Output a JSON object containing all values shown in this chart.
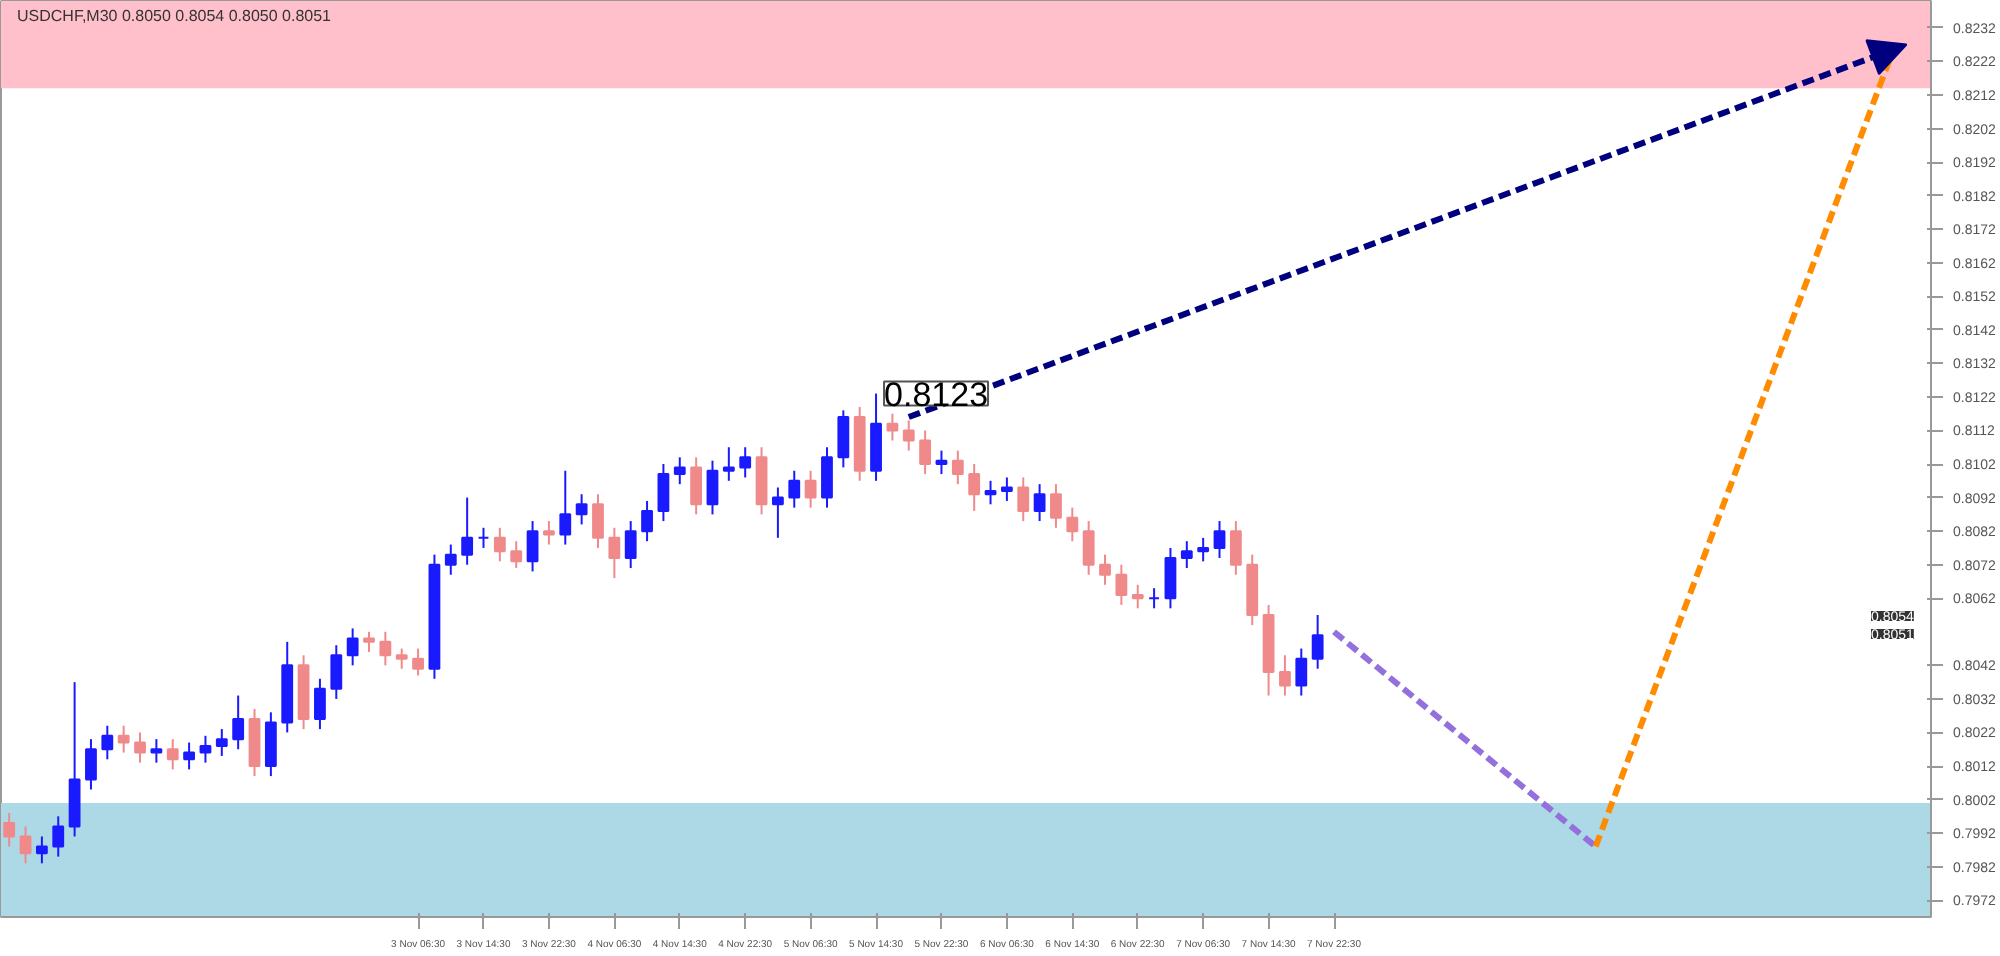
{
  "chart_data": {
    "type": "candlestick",
    "title": "USDCHF,M30  0.8050 0.8054 0.8050 0.8051",
    "categories": [
      null,
      null,
      null,
      null,
      null,
      null,
      null,
      null,
      null,
      null,
      null,
      null,
      null,
      null,
      null,
      null,
      null,
      null,
      null,
      null,
      null,
      null,
      null,
      null,
      null,
      "3 Nov 06:30",
      null,
      null,
      null,
      "3 Nov 14:30",
      null,
      null,
      null,
      "3 Nov 22:30",
      null,
      null,
      null,
      "4 Nov 06:30",
      null,
      null,
      null,
      "4 Nov 14:30",
      null,
      null,
      null,
      "4 Nov 22:30",
      null,
      null,
      null,
      "5 Nov 06:30",
      null,
      null,
      null,
      "5 Nov 14:30",
      null,
      null,
      null,
      "5 Nov 22:30",
      null,
      null,
      null,
      "6 Nov 06:30",
      null,
      null,
      null,
      "6 Nov 14:30",
      null,
      null,
      null,
      "6 Nov 22:30",
      null,
      null,
      null,
      "7 Nov 06:30",
      null,
      null,
      null,
      "7 Nov 14:30",
      null,
      null,
      null,
      "7 Nov 22:30",
      null,
      null,
      null,
      null,
      null,
      null,
      null,
      null,
      null,
      null,
      null,
      null,
      null,
      null,
      null,
      null,
      null,
      null,
      null,
      null,
      null,
      null,
      null,
      null,
      null,
      null,
      null,
      null,
      null,
      null,
      null,
      null,
      null,
      null,
      null,
      null
    ],
    "ohlc": [
      [
        0.7995,
        0.7998,
        0.7988,
        0.7991
      ],
      [
        0.7991,
        0.7994,
        0.7983,
        0.7986
      ],
      [
        0.7986,
        0.7991,
        0.7983,
        0.7988
      ],
      [
        0.7988,
        0.7997,
        0.7985,
        0.7994
      ],
      [
        0.7994,
        0.8037,
        0.7991,
        0.8008
      ],
      [
        0.8008,
        0.802,
        0.8005,
        0.8017
      ],
      [
        0.8017,
        0.8024,
        0.8014,
        0.8021
      ],
      [
        0.8021,
        0.8024,
        0.8016,
        0.8019
      ],
      [
        0.8019,
        0.8022,
        0.8013,
        0.8016
      ],
      [
        0.8016,
        0.802,
        0.8013,
        0.8017
      ],
      [
        0.8017,
        0.802,
        0.8011,
        0.8014
      ],
      [
        0.8014,
        0.8019,
        0.8011,
        0.8016
      ],
      [
        0.8016,
        0.8021,
        0.8013,
        0.8018
      ],
      [
        0.8018,
        0.8023,
        0.8015,
        0.802
      ],
      [
        0.802,
        0.8033,
        0.8017,
        0.8026
      ],
      [
        0.8026,
        0.8029,
        0.8009,
        0.8012
      ],
      [
        0.8012,
        0.8028,
        0.8009,
        0.8025
      ],
      [
        0.8025,
        0.8049,
        0.8022,
        0.8042
      ],
      [
        0.8042,
        0.8045,
        0.8023,
        0.8026
      ],
      [
        0.8026,
        0.8038,
        0.8023,
        0.8035
      ],
      [
        0.8035,
        0.8048,
        0.8032,
        0.8045
      ],
      [
        0.8045,
        0.8053,
        0.8042,
        0.805
      ],
      [
        0.805,
        0.8052,
        0.8046,
        0.8049
      ],
      [
        0.8049,
        0.8052,
        0.8042,
        0.8045
      ],
      [
        0.8045,
        0.8047,
        0.8041,
        0.8044
      ],
      [
        0.8044,
        0.8047,
        0.8039,
        0.8041
      ],
      [
        0.8041,
        0.8075,
        0.8038,
        0.8072
      ],
      [
        0.8072,
        0.8078,
        0.8069,
        0.8075
      ],
      [
        0.8075,
        0.8092,
        0.8072,
        0.808
      ],
      [
        0.808,
        0.8083,
        0.8077,
        0.808
      ],
      [
        0.808,
        0.8083,
        0.8073,
        0.8076
      ],
      [
        0.8076,
        0.8079,
        0.8071,
        0.8073
      ],
      [
        0.8073,
        0.8085,
        0.807,
        0.8082
      ],
      [
        0.8082,
        0.8085,
        0.8078,
        0.8081
      ],
      [
        0.8081,
        0.81,
        0.8078,
        0.8087
      ],
      [
        0.8087,
        0.8093,
        0.8084,
        0.809
      ],
      [
        0.809,
        0.8093,
        0.8077,
        0.808
      ],
      [
        0.808,
        0.8083,
        0.8068,
        0.8074
      ],
      [
        0.8074,
        0.8085,
        0.8071,
        0.8082
      ],
      [
        0.8082,
        0.8091,
        0.8079,
        0.8088
      ],
      [
        0.8088,
        0.8102,
        0.8085,
        0.8099
      ],
      [
        0.8099,
        0.8104,
        0.8096,
        0.8101
      ],
      [
        0.8101,
        0.8104,
        0.8087,
        0.809
      ],
      [
        0.809,
        0.8103,
        0.8087,
        0.81
      ],
      [
        0.81,
        0.8107,
        0.8097,
        0.8101
      ],
      [
        0.8101,
        0.8107,
        0.8098,
        0.8104
      ],
      [
        0.8104,
        0.8107,
        0.8087,
        0.809
      ],
      [
        0.809,
        0.8095,
        0.808,
        0.8092
      ],
      [
        0.8092,
        0.81,
        0.8089,
        0.8097
      ],
      [
        0.8097,
        0.81,
        0.8089,
        0.8092
      ],
      [
        0.8092,
        0.8107,
        0.8089,
        0.8104
      ],
      [
        0.8104,
        0.8118,
        0.8101,
        0.8116
      ],
      [
        0.8116,
        0.8119,
        0.8097,
        0.81
      ],
      [
        0.81,
        0.8123,
        0.8097,
        0.8114
      ],
      [
        0.8114,
        0.8117,
        0.8109,
        0.8112
      ],
      [
        0.8112,
        0.8115,
        0.8106,
        0.8109
      ],
      [
        0.8109,
        0.8112,
        0.8099,
        0.8102
      ],
      [
        0.8102,
        0.8106,
        0.8099,
        0.8103
      ],
      [
        0.8103,
        0.8106,
        0.8096,
        0.8099
      ],
      [
        0.8099,
        0.8102,
        0.8088,
        0.8093
      ],
      [
        0.8093,
        0.8097,
        0.809,
        0.8094
      ],
      [
        0.8094,
        0.8098,
        0.8091,
        0.8095
      ],
      [
        0.8095,
        0.8098,
        0.8085,
        0.8088
      ],
      [
        0.8088,
        0.8096,
        0.8085,
        0.8093
      ],
      [
        0.8093,
        0.8096,
        0.8083,
        0.8086
      ],
      [
        0.8086,
        0.8089,
        0.8079,
        0.8082
      ],
      [
        0.8082,
        0.8085,
        0.8069,
        0.8072
      ],
      [
        0.8072,
        0.8075,
        0.8066,
        0.8069
      ],
      [
        0.8069,
        0.8072,
        0.806,
        0.8063
      ],
      [
        0.8063,
        0.8066,
        0.8059,
        0.8062
      ],
      [
        0.8062,
        0.8065,
        0.8059,
        0.8062
      ],
      [
        0.8062,
        0.8077,
        0.8059,
        0.8074
      ],
      [
        0.8074,
        0.8079,
        0.8071,
        0.8076
      ],
      [
        0.8076,
        0.808,
        0.8073,
        0.8077
      ],
      [
        0.8077,
        0.8085,
        0.8074,
        0.8082
      ],
      [
        0.8082,
        0.8085,
        0.8069,
        0.8072
      ],
      [
        0.8072,
        0.8075,
        0.8054,
        0.8057
      ],
      [
        0.8057,
        0.806,
        0.8033,
        0.804
      ],
      [
        0.804,
        0.8045,
        0.8033,
        0.8036
      ],
      [
        0.8036,
        0.8047,
        0.8033,
        0.8044
      ],
      [
        0.8044,
        0.8057,
        0.8041,
        0.8051
      ],
      null,
      null,
      null,
      null,
      null,
      null,
      null,
      null,
      null,
      null,
      null,
      null,
      null,
      null,
      null,
      null,
      null,
      null,
      null,
      null,
      null,
      null,
      null,
      null,
      null,
      null,
      null,
      null,
      null,
      null,
      null,
      null,
      null,
      null,
      null,
      null,
      null
    ],
    "series": [
      {
        "type": "line",
        "color": "#9370db",
        "line_style": "dashed",
        "values": [
          null,
          null,
          null,
          null,
          null,
          null,
          null,
          null,
          null,
          null,
          null,
          null,
          null,
          null,
          null,
          null,
          null,
          null,
          null,
          null,
          null,
          null,
          null,
          null,
          null,
          null,
          null,
          null,
          null,
          null,
          null,
          null,
          null,
          null,
          null,
          null,
          null,
          null,
          null,
          null,
          null,
          null,
          null,
          null,
          null,
          null,
          null,
          null,
          null,
          null,
          null,
          null,
          null,
          null,
          null,
          null,
          null,
          null,
          null,
          null,
          null,
          null,
          null,
          null,
          null,
          null,
          null,
          null,
          null,
          null,
          null,
          null,
          null,
          null,
          null,
          null,
          null,
          null,
          null,
          null,
          null,
          0.8052,
          null,
          null,
          null,
          null,
          null,
          null,
          null,
          null,
          null,
          null,
          null,
          null,
          null,
          null,
          null,
          0.7988,
          null,
          null,
          null,
          null,
          null,
          null,
          null,
          null,
          null,
          null,
          null,
          null,
          null,
          null,
          null,
          null,
          null,
          null,
          null,
          null
        ]
      },
      {
        "type": "line",
        "color": "#ff8c00",
        "line_style": "dashed",
        "values": [
          null,
          null,
          null,
          null,
          null,
          null,
          null,
          null,
          null,
          null,
          null,
          null,
          null,
          null,
          null,
          null,
          null,
          null,
          null,
          null,
          null,
          null,
          null,
          null,
          null,
          null,
          null,
          null,
          null,
          null,
          null,
          null,
          null,
          null,
          null,
          null,
          null,
          null,
          null,
          null,
          null,
          null,
          null,
          null,
          null,
          null,
          null,
          null,
          null,
          null,
          null,
          null,
          null,
          null,
          null,
          null,
          null,
          null,
          null,
          null,
          null,
          null,
          null,
          null,
          null,
          null,
          null,
          null,
          null,
          null,
          null,
          null,
          null,
          null,
          null,
          null,
          null,
          null,
          null,
          null,
          null,
          null,
          null,
          null,
          null,
          null,
          null,
          null,
          null,
          null,
          null,
          null,
          null,
          null,
          null,
          null,
          null,
          0.7988,
          null,
          null,
          null,
          null,
          null,
          null,
          null,
          null,
          null,
          null,
          null,
          null,
          null,
          null,
          null,
          null,
          null,
          0.8223,
          null,
          null
        ]
      }
    ],
    "bands": [
      {
        "axis": "y",
        "from": 0.8214,
        "to": 0.824,
        "color": "#ffc0cb"
      },
      {
        "axis": "y",
        "from": 0.7967,
        "to": 0.8001,
        "color": "#add8e6"
      }
    ],
    "annotations": [
      "0.8123",
      "0.8054",
      "0.8051"
    ],
    "ylim": [
      0.7967,
      0.824
    ],
    "yticks": [
      0.7972,
      0.7982,
      0.7992,
      0.8002,
      0.8012,
      0.8022,
      0.8032,
      0.8042,
      0.8062,
      0.8072,
      0.8082,
      0.8092,
      0.8102,
      0.8112,
      0.8122,
      0.8132,
      0.8142,
      0.8152,
      0.8162,
      0.8172,
      0.8182,
      0.8192,
      0.8202,
      0.8212,
      0.8222,
      0.8232
    ],
    "grid": false
  }
}
